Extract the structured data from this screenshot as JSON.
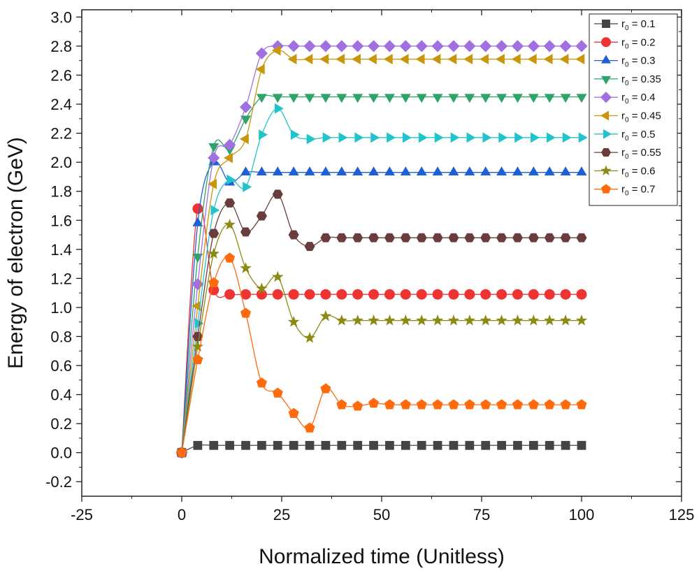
{
  "chart_data": {
    "type": "line",
    "title": "",
    "xlabel": "Normalized time (Unitless)",
    "ylabel": "Energy of electron (GeV)",
    "xlim": [
      -25,
      125
    ],
    "ylim": [
      -0.3,
      3.05
    ],
    "x_ticks": [
      -25,
      0,
      25,
      50,
      75,
      100,
      125
    ],
    "x_tick_labels": [
      "-25",
      "0",
      "25",
      "50",
      "75",
      "100",
      "125"
    ],
    "y_ticks": [
      -0.2,
      0.0,
      0.2,
      0.4,
      0.6,
      0.8,
      1.0,
      1.2,
      1.4,
      1.6,
      1.8,
      2.0,
      2.2,
      2.4,
      2.6,
      2.8,
      3.0
    ],
    "y_tick_labels": [
      "-0.2",
      "0.0",
      "0.2",
      "0.4",
      "0.6",
      "0.8",
      "1.0",
      "1.2",
      "1.4",
      "1.6",
      "1.8",
      "2.0",
      "2.2",
      "2.4",
      "2.6",
      "2.8",
      "3.0"
    ],
    "grid": false,
    "legend_position": "top-right",
    "x": [
      0,
      4,
      8,
      12,
      16,
      20,
      24,
      28,
      32,
      36,
      40,
      44,
      48,
      52,
      56,
      60,
      64,
      68,
      72,
      76,
      80,
      84,
      88,
      92,
      96,
      100
    ],
    "series": [
      {
        "name": "r",
        "subscript": "0",
        "suffix": " = 0.1",
        "color": "#444444",
        "marker": "square",
        "values": [
          0,
          0.05,
          0.05,
          0.05,
          0.05,
          0.05,
          0.05,
          0.05,
          0.05,
          0.05,
          0.05,
          0.05,
          0.05,
          0.05,
          0.05,
          0.05,
          0.05,
          0.05,
          0.05,
          0.05,
          0.05,
          0.05,
          0.05,
          0.05,
          0.05,
          0.05
        ]
      },
      {
        "name": "r",
        "subscript": "0",
        "suffix": " = 0.2",
        "color": "#ee3333",
        "marker": "circle",
        "values": [
          0,
          1.68,
          1.12,
          1.09,
          1.09,
          1.09,
          1.09,
          1.09,
          1.09,
          1.09,
          1.09,
          1.09,
          1.09,
          1.09,
          1.09,
          1.09,
          1.09,
          1.09,
          1.09,
          1.09,
          1.09,
          1.09,
          1.09,
          1.09,
          1.09,
          1.09
        ]
      },
      {
        "name": "r",
        "subscript": "0",
        "suffix": " = 0.3",
        "color": "#1f5fd6",
        "marker": "triangle-up",
        "values": [
          0,
          1.58,
          2.0,
          1.86,
          1.93,
          1.93,
          1.93,
          1.93,
          1.93,
          1.93,
          1.93,
          1.93,
          1.93,
          1.93,
          1.93,
          1.93,
          1.93,
          1.93,
          1.93,
          1.93,
          1.93,
          1.93,
          1.93,
          1.93,
          1.93,
          1.93
        ]
      },
      {
        "name": "r",
        "subscript": "0",
        "suffix": " = 0.35",
        "color": "#2ea36a",
        "marker": "triangle-down",
        "values": [
          0,
          1.35,
          2.11,
          2.09,
          2.3,
          2.45,
          2.45,
          2.45,
          2.45,
          2.45,
          2.45,
          2.45,
          2.45,
          2.45,
          2.45,
          2.45,
          2.45,
          2.45,
          2.45,
          2.45,
          2.45,
          2.45,
          2.45,
          2.45,
          2.45,
          2.45
        ]
      },
      {
        "name": "r",
        "subscript": "0",
        "suffix": " = 0.4",
        "color": "#a070e0",
        "marker": "diamond",
        "values": [
          0,
          1.16,
          2.03,
          2.12,
          2.38,
          2.75,
          2.8,
          2.8,
          2.8,
          2.8,
          2.8,
          2.8,
          2.8,
          2.8,
          2.8,
          2.8,
          2.8,
          2.8,
          2.8,
          2.8,
          2.8,
          2.8,
          2.8,
          2.8,
          2.8,
          2.8
        ]
      },
      {
        "name": "r",
        "subscript": "0",
        "suffix": " = 0.45",
        "color": "#c8960a",
        "marker": "triangle-left",
        "values": [
          0,
          1.01,
          1.85,
          2.03,
          2.16,
          2.64,
          2.77,
          2.71,
          2.71,
          2.71,
          2.71,
          2.71,
          2.71,
          2.71,
          2.71,
          2.71,
          2.71,
          2.71,
          2.71,
          2.71,
          2.71,
          2.71,
          2.71,
          2.71,
          2.71,
          2.71
        ]
      },
      {
        "name": "r",
        "subscript": "0",
        "suffix": " = 0.5",
        "color": "#22c4cc",
        "marker": "triangle-right",
        "values": [
          0,
          0.89,
          1.67,
          1.88,
          1.83,
          2.19,
          2.37,
          2.19,
          2.16,
          2.17,
          2.17,
          2.17,
          2.17,
          2.17,
          2.17,
          2.17,
          2.17,
          2.17,
          2.17,
          2.17,
          2.17,
          2.17,
          2.17,
          2.17,
          2.17,
          2.17
        ]
      },
      {
        "name": "r",
        "subscript": "0",
        "suffix": " = 0.55",
        "color": "#6b3c3c",
        "marker": "hexagon",
        "values": [
          0,
          0.8,
          1.51,
          1.72,
          1.52,
          1.63,
          1.78,
          1.5,
          1.42,
          1.48,
          1.48,
          1.48,
          1.48,
          1.48,
          1.48,
          1.48,
          1.48,
          1.48,
          1.48,
          1.48,
          1.48,
          1.48,
          1.48,
          1.48,
          1.48,
          1.48
        ]
      },
      {
        "name": "r",
        "subscript": "0",
        "suffix": " = 0.6",
        "color": "#8b8a14",
        "marker": "star",
        "values": [
          0,
          0.73,
          1.37,
          1.57,
          1.27,
          1.13,
          1.21,
          0.9,
          0.79,
          0.94,
          0.91,
          0.91,
          0.91,
          0.91,
          0.91,
          0.91,
          0.91,
          0.91,
          0.91,
          0.91,
          0.91,
          0.91,
          0.91,
          0.91,
          0.91,
          0.91
        ]
      },
      {
        "name": "r",
        "subscript": "0",
        "suffix": " = 0.7",
        "color": "#ff6a0c",
        "marker": "pentagon",
        "values": [
          0,
          0.64,
          1.17,
          1.34,
          0.96,
          0.48,
          0.41,
          0.27,
          0.17,
          0.44,
          0.33,
          0.32,
          0.34,
          0.33,
          0.33,
          0.33,
          0.33,
          0.33,
          0.33,
          0.33,
          0.33,
          0.33,
          0.33,
          0.33,
          0.33,
          0.33
        ]
      }
    ]
  }
}
